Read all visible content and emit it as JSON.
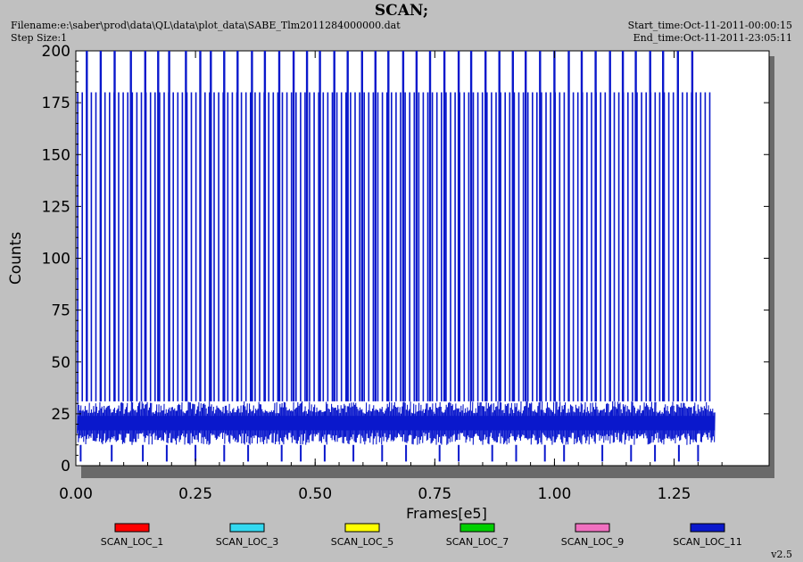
{
  "header": {
    "title": "SCAN;",
    "filename": "Filename:e:\\saber\\prod\\data\\QL\\data\\plot_data\\SABE_Tlm2011284000000.dat",
    "step_size": "Step Size:1",
    "start_time": "Start_time:Oct-11-2011-00:00:15",
    "end_time": "End_time:Oct-11-2011-23:05:11"
  },
  "version": "v2.5",
  "colors": {
    "background": "#c0c0c0",
    "plot_area": "#ffffff",
    "shadow": "#6a6a6a",
    "main_series": "#0a18cc"
  },
  "chart_data": {
    "type": "line",
    "title": "SCAN;",
    "xlabel": "Frames[e5]",
    "ylabel": "Counts",
    "xlim": [
      0.0,
      1.4
    ],
    "ylim": [
      0,
      200
    ],
    "x_ticks": [
      "0.00",
      "0.25",
      "0.50",
      "0.75",
      "1.00",
      "1.25"
    ],
    "y_ticks": [
      "0",
      "25",
      "50",
      "75",
      "100",
      "125",
      "150",
      "175",
      "200"
    ],
    "legend_placement": "bottom",
    "series": [
      {
        "name": "SCAN_LOC_1",
        "color": "#ff0000",
        "values": []
      },
      {
        "name": "SCAN_LOC_3",
        "color": "#33d9f0",
        "values": []
      },
      {
        "name": "SCAN_LOC_5",
        "color": "#ffff00",
        "values": []
      },
      {
        "name": "SCAN_LOC_7",
        "color": "#00d000",
        "values": []
      },
      {
        "name": "SCAN_LOC_9",
        "color": "#f070c0",
        "values": []
      },
      {
        "name": "SCAN_LOC_11",
        "color": "#0a18cc",
        "x_range": [
          0.0,
          1.335
        ],
        "baseline_band": [
          10,
          31
        ],
        "typical_peak": 180,
        "peaks_200": {
          "x": [
            0.023,
            0.052,
            0.081,
            0.115,
            0.145,
            0.172,
            0.195,
            0.23,
            0.26,
            0.282,
            0.31,
            0.338,
            0.368,
            0.395,
            0.425,
            0.455,
            0.483,
            0.51,
            0.54,
            0.568,
            0.598,
            0.626,
            0.653,
            0.684,
            0.712,
            0.74,
            0.77,
            0.8,
            0.826,
            0.856,
            0.885,
            0.913,
            0.94,
            0.97,
            1.0,
            1.03,
            1.057,
            1.086,
            1.116,
            1.143,
            1.17,
            1.2,
            1.227,
            1.258,
            1.288
          ],
          "y": 200
        },
        "peaks_180_spacing": 0.0095,
        "valleys": {
          "x": [
            0.01,
            0.075,
            0.14,
            0.19,
            0.25,
            0.31,
            0.36,
            0.43,
            0.47,
            0.52,
            0.58,
            0.64,
            0.69,
            0.76,
            0.8,
            0.87,
            0.92,
            0.98,
            1.02,
            1.1,
            1.16,
            1.21,
            1.26,
            1.3
          ],
          "y": 2
        }
      }
    ]
  }
}
